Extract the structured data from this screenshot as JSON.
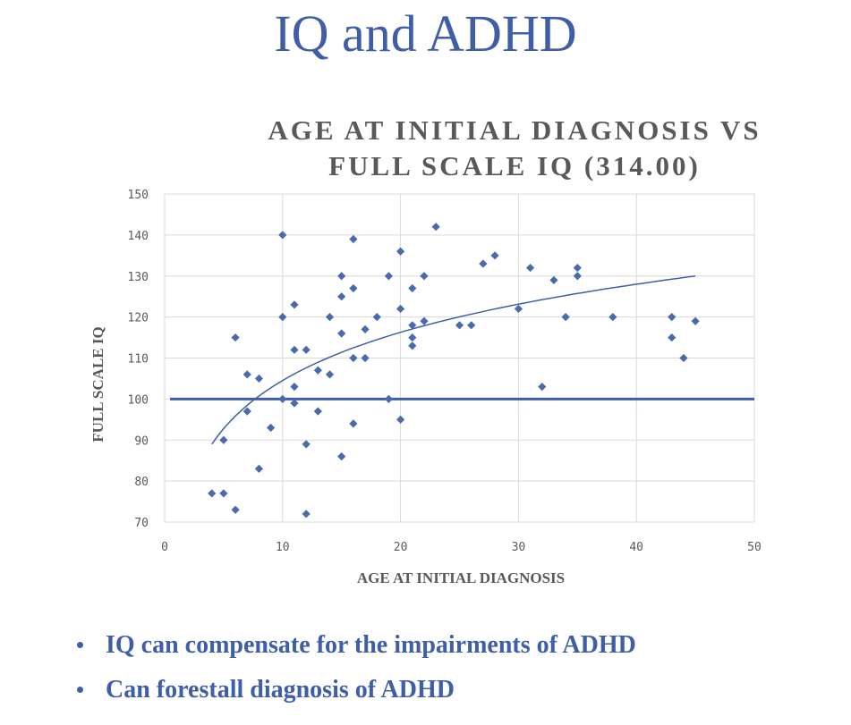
{
  "slide": {
    "title": "IQ and ADHD",
    "bullets": [
      "IQ can compensate for the impairments of ADHD",
      "Can forestall diagnosis of ADHD"
    ]
  },
  "chart_data": {
    "type": "scatter",
    "title_lines": [
      "AGE AT INITIAL DIAGNOSIS VS",
      "FULL SCALE IQ  (314.00)"
    ],
    "xlabel": "AGE AT INITIAL DIAGNOSIS",
    "ylabel": "FULL SCALE IQ",
    "xlim": [
      0,
      50
    ],
    "ylim": [
      70,
      150
    ],
    "xticks": [
      0,
      10,
      20,
      30,
      40,
      50
    ],
    "yticks": [
      70,
      80,
      90,
      100,
      110,
      120,
      130,
      140,
      150
    ],
    "grid": true,
    "reference_line": {
      "y": 100
    },
    "trendline": {
      "type": "logarithmic",
      "x_start": 4,
      "x_end": 45,
      "y_start": 89,
      "y_end": 130
    },
    "marker_color": "#4a6aae",
    "line_color": "#3f5ea8",
    "series": [
      {
        "name": "Full Scale IQ",
        "points": [
          [
            4,
            77
          ],
          [
            5,
            77
          ],
          [
            5,
            90
          ],
          [
            6,
            73
          ],
          [
            6,
            115
          ],
          [
            7,
            106
          ],
          [
            7,
            97
          ],
          [
            8,
            105
          ],
          [
            8,
            83
          ],
          [
            9,
            93
          ],
          [
            10,
            140
          ],
          [
            10,
            120
          ],
          [
            10,
            100
          ],
          [
            11,
            123
          ],
          [
            11,
            112
          ],
          [
            11,
            103
          ],
          [
            11,
            99
          ],
          [
            12,
            112
          ],
          [
            12,
            89
          ],
          [
            12,
            72
          ],
          [
            13,
            107
          ],
          [
            13,
            97
          ],
          [
            14,
            120
          ],
          [
            14,
            106
          ],
          [
            15,
            130
          ],
          [
            15,
            125
          ],
          [
            15,
            116
          ],
          [
            15,
            86
          ],
          [
            16,
            139
          ],
          [
            16,
            127
          ],
          [
            16,
            110
          ],
          [
            16,
            94
          ],
          [
            17,
            117
          ],
          [
            17,
            110
          ],
          [
            18,
            120
          ],
          [
            19,
            130
          ],
          [
            19,
            100
          ],
          [
            20,
            136
          ],
          [
            20,
            122
          ],
          [
            20,
            95
          ],
          [
            21,
            127
          ],
          [
            21,
            118
          ],
          [
            21,
            115
          ],
          [
            21,
            113
          ],
          [
            22,
            130
          ],
          [
            22,
            119
          ],
          [
            23,
            142
          ],
          [
            25,
            118
          ],
          [
            26,
            118
          ],
          [
            27,
            133
          ],
          [
            28,
            135
          ],
          [
            30,
            122
          ],
          [
            31,
            132
          ],
          [
            32,
            103
          ],
          [
            33,
            129
          ],
          [
            34,
            120
          ],
          [
            35,
            132
          ],
          [
            35,
            130
          ],
          [
            38,
            120
          ],
          [
            43,
            120
          ],
          [
            43,
            115
          ],
          [
            44,
            110
          ],
          [
            45,
            119
          ]
        ]
      }
    ]
  }
}
